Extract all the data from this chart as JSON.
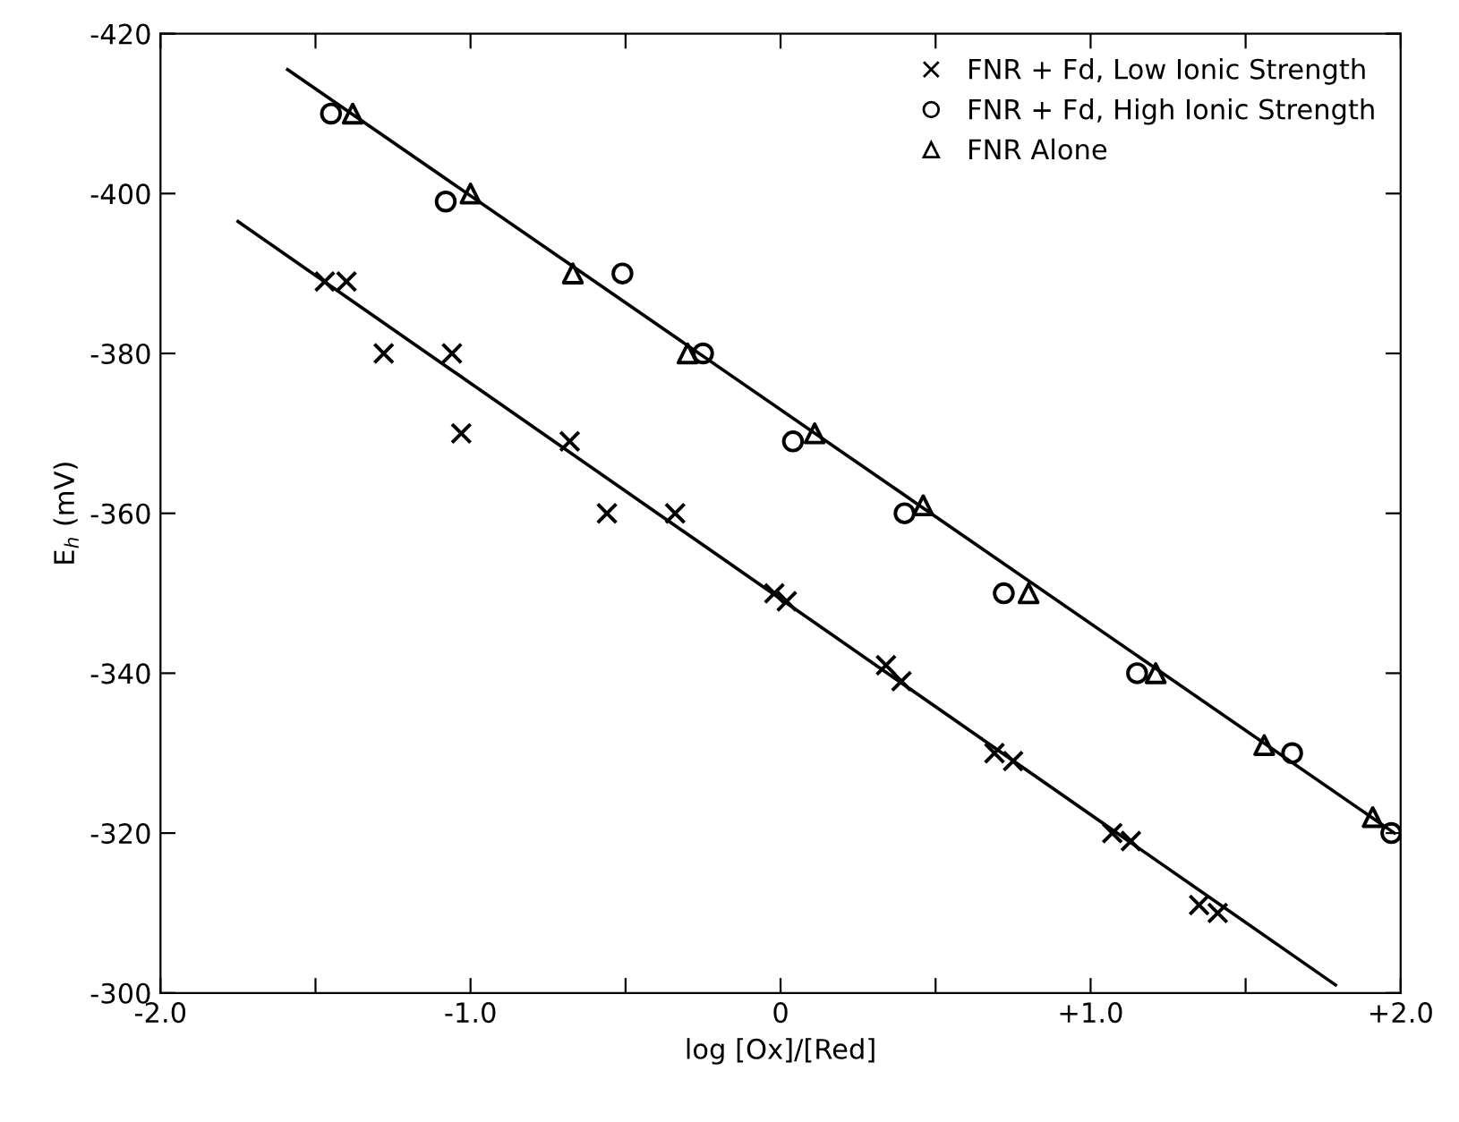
{
  "chart_data": {
    "type": "scatter",
    "xlabel": "log [Ox]/[Red]",
    "ylabel": "E$_{h}$ (mV)",
    "xlim": [
      -2.0,
      2.0
    ],
    "ylim": [
      -300,
      -420
    ],
    "xticks": [
      {
        "value": -2.0,
        "label": "-2.0"
      },
      {
        "value": -1.5,
        "label": null
      },
      {
        "value": -1.0,
        "label": "-1.0"
      },
      {
        "value": -0.5,
        "label": null
      },
      {
        "value": 0,
        "label": "0"
      },
      {
        "value": 0.5,
        "label": null
      },
      {
        "value": 1.0,
        "label": "+1.0"
      },
      {
        "value": 1.5,
        "label": null
      },
      {
        "value": 2.0,
        "label": "+2.0"
      }
    ],
    "yticks": [
      -420,
      -400,
      -380,
      -360,
      -340,
      -320,
      -300
    ],
    "legend": "top right",
    "grid": false,
    "series": [
      {
        "name": "FNR + Fd, Low Ionic Strength",
        "color": "#000000",
        "marker": "cross",
        "x": [
          -1.47,
          -1.4,
          -1.28,
          -1.06,
          -1.03,
          -0.68,
          -0.56,
          -0.34,
          -0.02,
          0.02,
          0.34,
          0.39,
          0.69,
          0.75,
          1.07,
          1.13,
          1.35,
          1.41
        ],
        "values": [
          -389,
          -389,
          -380,
          -380,
          -370,
          -369,
          -360,
          -360,
          -350,
          -349,
          -341,
          -339,
          -330,
          -329,
          -320,
          -319,
          -311,
          -310
        ]
      },
      {
        "name": "FNR + Fd, High Ionic Strength",
        "color": "#000000",
        "marker": "circle",
        "x": [
          -1.45,
          -1.08,
          -0.51,
          -0.25,
          0.04,
          0.4,
          0.72,
          1.15,
          1.65,
          1.97
        ],
        "values": [
          -410,
          -399,
          -390,
          -380,
          -369,
          -360,
          -350,
          -340,
          -330,
          -320
        ]
      },
      {
        "name": "FNR Alone",
        "color": "#000000",
        "marker": "triangle",
        "x": [
          -1.38,
          -1.0,
          -0.67,
          -0.3,
          0.11,
          0.46,
          0.8,
          1.21,
          1.56,
          1.91
        ],
        "values": [
          -410,
          -400,
          -390,
          -380,
          -370,
          -361,
          -350,
          -340,
          -331,
          -322
        ]
      },
      {
        "type": "line",
        "color": "#000000",
        "x": [
          -1.59,
          1.98
        ],
        "values": [
          -415.5,
          -320
        ]
      },
      {
        "type": "line",
        "color": "#000000",
        "x": [
          -1.75,
          1.79
        ],
        "values": [
          -396.5,
          -301
        ]
      }
    ]
  }
}
